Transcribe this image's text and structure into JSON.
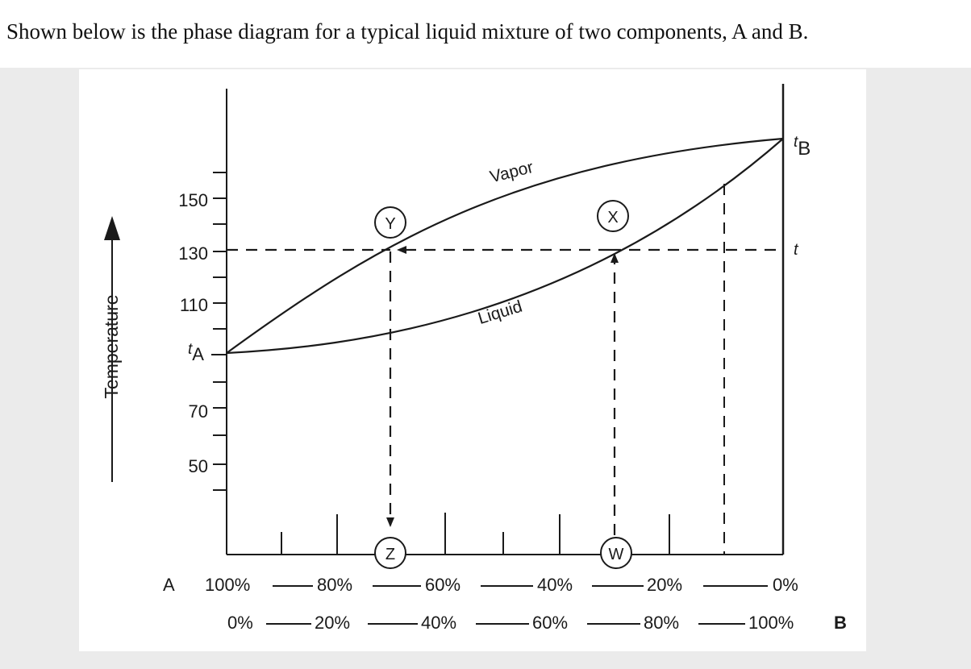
{
  "question": "Shown below is the phase diagram for a typical liquid mixture of two components, A and B.",
  "diagram": {
    "y_axis_label": "Temperature",
    "y_ticks": [
      "150",
      "130",
      "110",
      "70",
      "50"
    ],
    "ta_label": "t",
    "ta_sub": "A",
    "tb_label": "t",
    "tb_sub": "B",
    "t_label": "t",
    "vapor_label": "Vapor",
    "liquid_label": "Liquid",
    "points": {
      "y": "Y",
      "x": "X",
      "z": "Z",
      "w": "W"
    },
    "axis_a_letter": "A",
    "axis_b_letter": "B",
    "row_a": [
      "100%",
      "80%",
      "60%",
      "40%",
      "20%",
      "0%"
    ],
    "row_b": [
      "0%",
      "20%",
      "40%",
      "60%",
      "80%",
      "100%"
    ],
    "colors": {
      "line": "#1a1a1a",
      "background": "#ebebeb",
      "card": "#ffffff"
    }
  }
}
